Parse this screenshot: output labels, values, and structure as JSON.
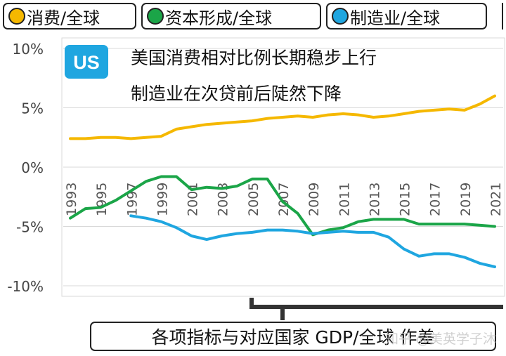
{
  "legend": [
    {
      "label": "消费/全球",
      "color": "#F5B800"
    },
    {
      "label": "资本形成/全球",
      "color": "#1BA548"
    },
    {
      "label": "制造业/全球",
      "color": "#1FA6E0"
    }
  ],
  "badge": "US",
  "badge_color": "#1FA6E0",
  "annotations": [
    "美国消费相对比例长期稳步上行",
    "制造业在次贷前后陡然下降"
  ],
  "footer": "各项指标与对应国家 GDP/全球 作差",
  "watermark": "知乎 @美英学子沐",
  "chart_data": {
    "type": "line",
    "title": "",
    "xlabel": "",
    "ylabel": "",
    "x": [
      1993,
      1994,
      1995,
      1996,
      1997,
      1998,
      1999,
      2000,
      2001,
      2002,
      2003,
      2004,
      2005,
      2006,
      2007,
      2008,
      2009,
      2010,
      2011,
      2012,
      2013,
      2014,
      2015,
      2016,
      2017,
      2018,
      2019,
      2020,
      2021
    ],
    "x_tick_labels": [
      "1993",
      "1995",
      "1997",
      "1999",
      "2001",
      "2003",
      "2005",
      "2007",
      "2009",
      "2011",
      "2013",
      "2015",
      "2017",
      "2019",
      "2021"
    ],
    "y_tick_labels": [
      "10%",
      "5%",
      "0%",
      "-5%",
      "-10%"
    ],
    "ylim": [
      -10.5,
      10
    ],
    "grid": true,
    "series": [
      {
        "name": "消费/全球",
        "color": "#F5B800",
        "values": [
          2.4,
          2.4,
          2.5,
          2.5,
          2.4,
          2.5,
          2.6,
          3.2,
          3.4,
          3.6,
          3.7,
          3.8,
          3.9,
          4.1,
          4.2,
          4.3,
          4.2,
          4.4,
          4.5,
          4.4,
          4.2,
          4.3,
          4.5,
          4.7,
          4.8,
          4.9,
          4.8,
          5.3,
          6.0
        ]
      },
      {
        "name": "资本形成/全球",
        "color": "#1BA548",
        "values": [
          -4.3,
          -3.5,
          -3.4,
          -2.8,
          -2.0,
          -1.2,
          -0.8,
          -0.8,
          -1.9,
          -1.7,
          -1.8,
          -1.6,
          -1.0,
          -1.0,
          -2.9,
          -3.9,
          -5.7,
          -5.3,
          -5.1,
          -4.6,
          -4.4,
          -4.4,
          -4.4,
          -4.8,
          -4.8,
          -4.8,
          -4.8,
          -4.9,
          -5.0
        ]
      },
      {
        "name": "制造业/全球",
        "color": "#1FA6E0",
        "values": [
          null,
          null,
          null,
          null,
          -4.1,
          -4.3,
          -4.6,
          -5.1,
          -5.8,
          -6.1,
          -5.8,
          -5.6,
          -5.5,
          -5.3,
          -5.3,
          -5.4,
          -5.6,
          -5.5,
          -5.4,
          -5.5,
          -5.5,
          -5.9,
          -6.9,
          -7.5,
          -7.3,
          -7.3,
          -7.6,
          -8.1,
          -8.4
        ]
      }
    ]
  }
}
